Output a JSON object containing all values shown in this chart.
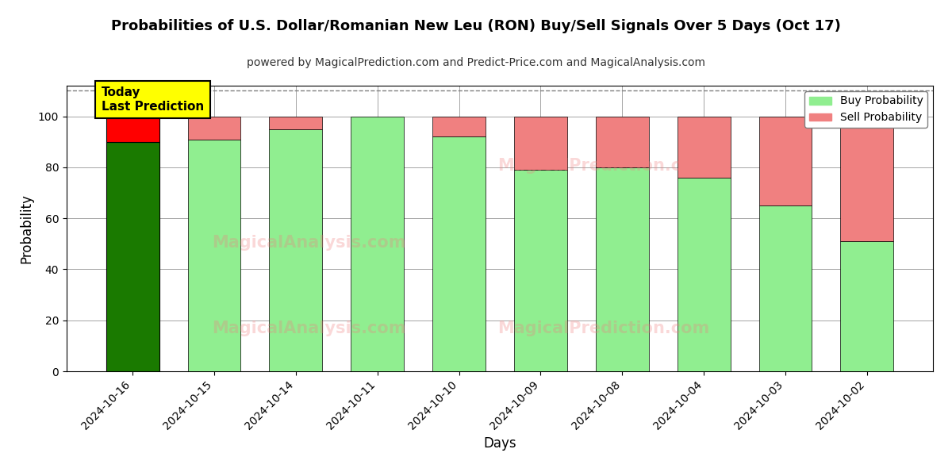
{
  "title": "Probabilities of U.S. Dollar/Romanian New Leu (RON) Buy/Sell Signals Over 5 Days (Oct 17)",
  "subtitle": "powered by MagicalPrediction.com and Predict-Price.com and MagicalAnalysis.com",
  "xlabel": "Days",
  "ylabel": "Probability",
  "categories": [
    "2024-10-16",
    "2024-10-15",
    "2024-10-14",
    "2024-10-11",
    "2024-10-10",
    "2024-10-09",
    "2024-10-08",
    "2024-10-04",
    "2024-10-03",
    "2024-10-02"
  ],
  "buy_values": [
    90,
    91,
    95,
    100,
    92,
    79,
    80,
    76,
    65,
    51
  ],
  "sell_values": [
    10,
    9,
    5,
    0,
    8,
    21,
    20,
    24,
    35,
    49
  ],
  "buy_color_today": "#1a7a00",
  "sell_color_today": "#ff0000",
  "buy_color_normal": "#90ee90",
  "sell_color_normal": "#f08080",
  "annotation_text": "Today\nLast Prediction",
  "annotation_bg": "#ffff00",
  "ylim": [
    0,
    112
  ],
  "yticks": [
    0,
    20,
    40,
    60,
    80,
    100
  ],
  "dashed_line_y": 110,
  "watermark1": "MagicalAnalysis.com",
  "watermark2": "MagicalPrediction.com",
  "legend_buy": "Buy Probability",
  "legend_sell": "Sell Probability",
  "bar_width": 0.65
}
